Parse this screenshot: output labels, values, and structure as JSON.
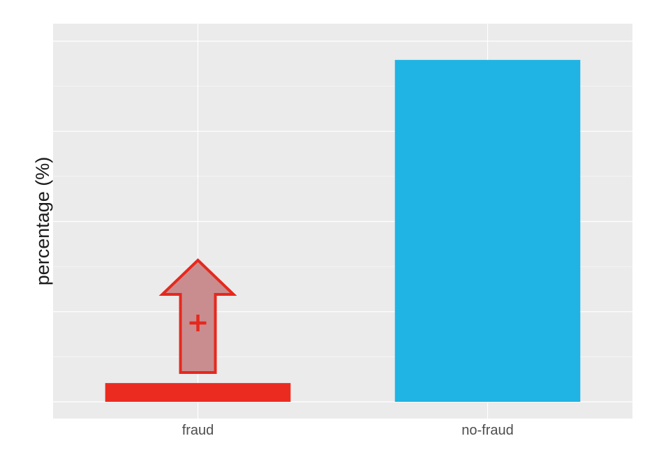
{
  "chart_data": {
    "type": "bar",
    "title": "",
    "xlabel": "",
    "ylabel": "percentage (%)",
    "categories": [
      "fraud",
      "no-fraud"
    ],
    "values": [
      5.2,
      94.8
    ],
    "ylim": [
      0,
      100
    ],
    "y_tick_labels_shown": false,
    "grid": true,
    "legend": "none",
    "colors": {
      "panel_background": "#ebebeb",
      "grid": "#ffffff",
      "fraud": "#ec2b20",
      "no-fraud": "#1fb4e4",
      "arrow_fill": "#c98d8f",
      "arrow_stroke": "#e6281e"
    },
    "annotations": [
      {
        "type": "arrow-up-icon",
        "category": "fraud",
        "meaning": "increase",
        "symbol": "+"
      }
    ]
  }
}
